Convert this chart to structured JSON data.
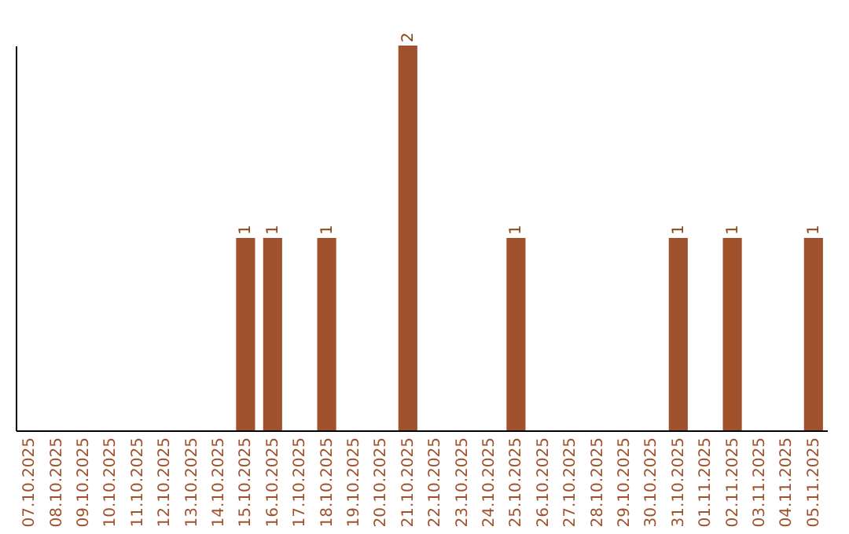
{
  "chart_data": {
    "type": "bar",
    "categories": [
      "07.10.2025",
      "08.10.2025",
      "09.10.2025",
      "10.10.2025",
      "11.10.2025",
      "12.10.2025",
      "13.10.2025",
      "14.10.2025",
      "15.10.2025",
      "16.10.2025",
      "17.10.2025",
      "18.10.2025",
      "19.10.2025",
      "20.10.2025",
      "21.10.2025",
      "22.10.2025",
      "23.10.2025",
      "24.10.2025",
      "25.10.2025",
      "26.10.2025",
      "27.10.2025",
      "28.10.2025",
      "29.10.2025",
      "30.10.2025",
      "31.10.2025",
      "01.11.2025",
      "02.11.2025",
      "03.11.2025",
      "04.11.2025",
      "05.11.2025"
    ],
    "values": [
      0,
      0,
      0,
      0,
      0,
      0,
      0,
      0,
      1,
      1,
      0,
      1,
      0,
      0,
      2,
      0,
      0,
      0,
      1,
      0,
      0,
      0,
      0,
      0,
      1,
      0,
      1,
      0,
      0,
      1
    ],
    "value_labels": [
      null,
      null,
      null,
      null,
      null,
      null,
      null,
      null,
      "1",
      "1",
      null,
      "1",
      null,
      null,
      "2",
      null,
      null,
      null,
      "1",
      null,
      null,
      null,
      null,
      null,
      "1",
      null,
      "1",
      null,
      null,
      "1"
    ],
    "color": "#a0522d",
    "grid": false,
    "tick_labels": "x"
  }
}
